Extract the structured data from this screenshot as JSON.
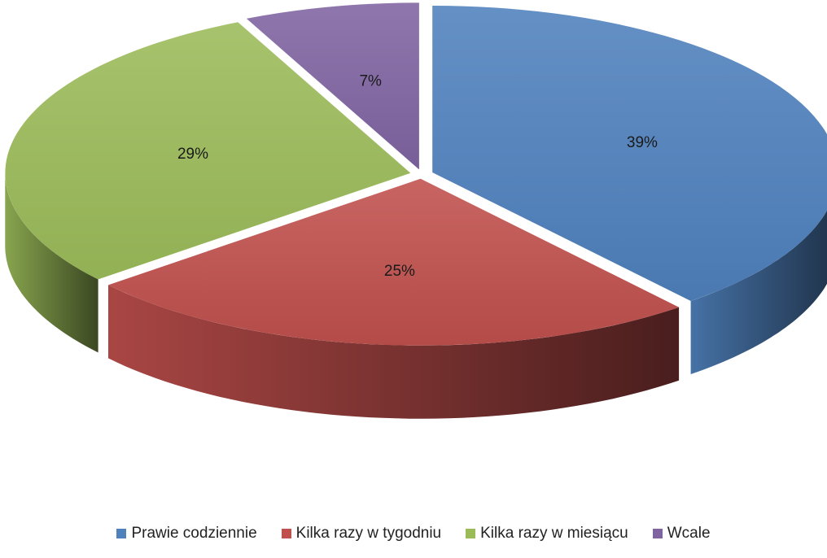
{
  "chart_data": {
    "type": "pie",
    "style": "3d-exploded",
    "categories": [
      "Prawie codziennie",
      "Kilka razy w tygodniu",
      "Kilka razy w miesiącu",
      "Wcale"
    ],
    "values": [
      39,
      25,
      29,
      7
    ],
    "labels": [
      "39%",
      "25%",
      "29%",
      "7%"
    ],
    "colors": [
      "#4F81BD",
      "#C0504D",
      "#9BBB59",
      "#8064A2"
    ],
    "legend_position": "bottom"
  }
}
